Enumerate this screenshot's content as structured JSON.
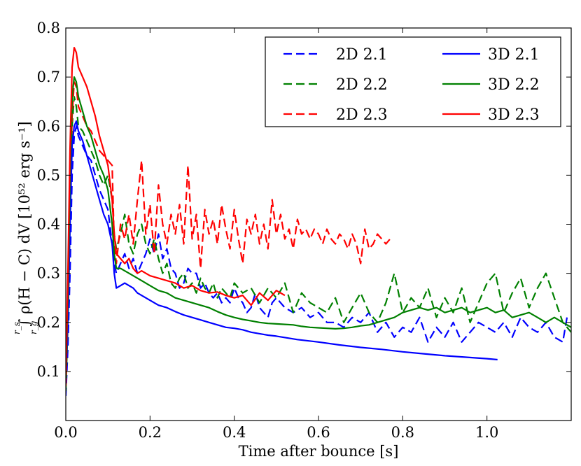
{
  "chart_data": {
    "type": "line",
    "title": "",
    "xlabel": "Time after bounce [s]",
    "ylabel": "∫ ρ(H − C) dV [10⁵² erg s⁻¹]",
    "ylabel_integral_lower": "r_g",
    "ylabel_integral_upper": "r_s",
    "xlim": [
      0.0,
      1.2
    ],
    "ylim": [
      0.0,
      0.8
    ],
    "xticks": [
      0.0,
      0.2,
      0.4,
      0.6,
      0.8,
      1.0
    ],
    "xtick_labels": [
      "0.0",
      "0.2",
      "0.4",
      "0.6",
      "0.8",
      "1.0"
    ],
    "yticks": [
      0.1,
      0.2,
      0.3,
      0.4,
      0.5,
      0.6,
      0.7,
      0.8
    ],
    "ytick_labels": [
      "0.1",
      "0.2",
      "0.3",
      "0.4",
      "0.5",
      "0.6",
      "0.7",
      "0.8"
    ],
    "legend_position": "top-right",
    "series": [
      {
        "name": "2D 2.1",
        "color": "#0000ff",
        "style": "dashed",
        "x": [
          0.0,
          0.005,
          0.01,
          0.015,
          0.02,
          0.025,
          0.03,
          0.04,
          0.05,
          0.06,
          0.07,
          0.08,
          0.09,
          0.1,
          0.11,
          0.115,
          0.12,
          0.13,
          0.14,
          0.15,
          0.16,
          0.17,
          0.18,
          0.19,
          0.2,
          0.21,
          0.22,
          0.23,
          0.24,
          0.25,
          0.26,
          0.27,
          0.28,
          0.29,
          0.3,
          0.31,
          0.32,
          0.33,
          0.34,
          0.35,
          0.36,
          0.37,
          0.38,
          0.39,
          0.4,
          0.41,
          0.42,
          0.43,
          0.44,
          0.45,
          0.46,
          0.47,
          0.48,
          0.49,
          0.5,
          0.52,
          0.54,
          0.56,
          0.58,
          0.6,
          0.62,
          0.64,
          0.66,
          0.68,
          0.7,
          0.72,
          0.74,
          0.76,
          0.78,
          0.8,
          0.82,
          0.84,
          0.86,
          0.88,
          0.9,
          0.92,
          0.94,
          0.96,
          0.98,
          1.0,
          1.02,
          1.04,
          1.06,
          1.08,
          1.1,
          1.12,
          1.14,
          1.16,
          1.18,
          1.19
        ],
        "y": [
          0.05,
          0.15,
          0.3,
          0.5,
          0.58,
          0.6,
          0.58,
          0.56,
          0.54,
          0.53,
          0.5,
          0.47,
          0.45,
          0.43,
          0.36,
          0.32,
          0.3,
          0.32,
          0.34,
          0.31,
          0.33,
          0.3,
          0.32,
          0.34,
          0.37,
          0.34,
          0.38,
          0.33,
          0.35,
          0.31,
          0.3,
          0.27,
          0.28,
          0.31,
          0.3,
          0.3,
          0.27,
          0.28,
          0.26,
          0.25,
          0.26,
          0.24,
          0.25,
          0.24,
          0.27,
          0.25,
          0.24,
          0.22,
          0.23,
          0.26,
          0.23,
          0.22,
          0.21,
          0.24,
          0.25,
          0.23,
          0.22,
          0.23,
          0.21,
          0.22,
          0.2,
          0.2,
          0.19,
          0.21,
          0.2,
          0.22,
          0.18,
          0.2,
          0.17,
          0.19,
          0.18,
          0.21,
          0.16,
          0.19,
          0.17,
          0.2,
          0.16,
          0.18,
          0.2,
          0.19,
          0.18,
          0.2,
          0.17,
          0.21,
          0.19,
          0.18,
          0.2,
          0.17,
          0.16,
          0.21
        ]
      },
      {
        "name": "2D 2.2",
        "color": "#008000",
        "style": "dashed",
        "x": [
          0.0,
          0.005,
          0.01,
          0.015,
          0.02,
          0.025,
          0.03,
          0.04,
          0.05,
          0.06,
          0.07,
          0.08,
          0.09,
          0.1,
          0.11,
          0.115,
          0.12,
          0.13,
          0.14,
          0.15,
          0.16,
          0.17,
          0.18,
          0.19,
          0.2,
          0.21,
          0.22,
          0.23,
          0.24,
          0.25,
          0.26,
          0.27,
          0.28,
          0.29,
          0.3,
          0.31,
          0.32,
          0.33,
          0.34,
          0.35,
          0.36,
          0.37,
          0.38,
          0.39,
          0.4,
          0.42,
          0.44,
          0.46,
          0.48,
          0.5,
          0.52,
          0.54,
          0.56,
          0.58,
          0.6,
          0.62,
          0.64,
          0.66,
          0.68,
          0.7,
          0.72,
          0.74,
          0.76,
          0.78,
          0.8,
          0.82,
          0.84,
          0.86,
          0.88,
          0.9,
          0.92,
          0.94,
          0.96,
          0.98,
          1.0,
          1.02,
          1.04,
          1.06,
          1.08,
          1.1,
          1.12,
          1.14,
          1.16,
          1.18,
          1.2
        ],
        "y": [
          0.06,
          0.2,
          0.4,
          0.6,
          0.66,
          0.64,
          0.6,
          0.59,
          0.57,
          0.55,
          0.53,
          0.5,
          0.48,
          0.5,
          0.45,
          0.38,
          0.35,
          0.38,
          0.42,
          0.36,
          0.34,
          0.38,
          0.4,
          0.36,
          0.34,
          0.37,
          0.33,
          0.3,
          0.32,
          0.28,
          0.27,
          0.29,
          0.3,
          0.27,
          0.28,
          0.26,
          0.29,
          0.27,
          0.26,
          0.28,
          0.25,
          0.27,
          0.26,
          0.25,
          0.28,
          0.26,
          0.27,
          0.24,
          0.27,
          0.25,
          0.28,
          0.22,
          0.26,
          0.24,
          0.23,
          0.22,
          0.25,
          0.2,
          0.23,
          0.26,
          0.22,
          0.2,
          0.24,
          0.3,
          0.22,
          0.25,
          0.23,
          0.27,
          0.21,
          0.25,
          0.22,
          0.27,
          0.2,
          0.24,
          0.28,
          0.3,
          0.22,
          0.26,
          0.29,
          0.23,
          0.27,
          0.3,
          0.25,
          0.2,
          0.18
        ]
      },
      {
        "name": "2D 2.3",
        "color": "#ff0000",
        "style": "dashed",
        "x": [
          0.0,
          0.005,
          0.01,
          0.015,
          0.02,
          0.025,
          0.03,
          0.04,
          0.05,
          0.06,
          0.07,
          0.08,
          0.09,
          0.1,
          0.11,
          0.115,
          0.12,
          0.13,
          0.14,
          0.15,
          0.16,
          0.17,
          0.18,
          0.19,
          0.2,
          0.21,
          0.22,
          0.23,
          0.24,
          0.25,
          0.26,
          0.27,
          0.28,
          0.29,
          0.3,
          0.31,
          0.32,
          0.33,
          0.34,
          0.35,
          0.36,
          0.37,
          0.38,
          0.39,
          0.4,
          0.41,
          0.42,
          0.43,
          0.44,
          0.45,
          0.46,
          0.47,
          0.48,
          0.49,
          0.5,
          0.51,
          0.52,
          0.53,
          0.54,
          0.55,
          0.56,
          0.57,
          0.58,
          0.59,
          0.6,
          0.61,
          0.62,
          0.63,
          0.64,
          0.65,
          0.66,
          0.67,
          0.68,
          0.69,
          0.7,
          0.71,
          0.72,
          0.73,
          0.74,
          0.75,
          0.76,
          0.77
        ],
        "y": [
          0.07,
          0.25,
          0.45,
          0.62,
          0.69,
          0.68,
          0.64,
          0.62,
          0.6,
          0.59,
          0.57,
          0.55,
          0.54,
          0.53,
          0.52,
          0.36,
          0.32,
          0.4,
          0.37,
          0.42,
          0.36,
          0.45,
          0.53,
          0.38,
          0.44,
          0.34,
          0.48,
          0.4,
          0.36,
          0.42,
          0.38,
          0.44,
          0.36,
          0.52,
          0.37,
          0.42,
          0.31,
          0.43,
          0.38,
          0.41,
          0.36,
          0.44,
          0.39,
          0.35,
          0.43,
          0.37,
          0.32,
          0.41,
          0.38,
          0.42,
          0.36,
          0.4,
          0.35,
          0.45,
          0.38,
          0.42,
          0.37,
          0.39,
          0.35,
          0.41,
          0.38,
          0.39,
          0.37,
          0.39,
          0.38,
          0.36,
          0.39,
          0.37,
          0.36,
          0.38,
          0.37,
          0.35,
          0.38,
          0.36,
          0.32,
          0.39,
          0.35,
          0.36,
          0.38,
          0.37,
          0.36,
          0.37
        ]
      },
      {
        "name": "3D 2.1",
        "color": "#0000ff",
        "style": "solid",
        "x": [
          0.0,
          0.005,
          0.01,
          0.015,
          0.02,
          0.025,
          0.03,
          0.04,
          0.05,
          0.06,
          0.07,
          0.08,
          0.09,
          0.1,
          0.11,
          0.115,
          0.12,
          0.13,
          0.14,
          0.15,
          0.16,
          0.17,
          0.18,
          0.2,
          0.22,
          0.24,
          0.26,
          0.28,
          0.3,
          0.32,
          0.34,
          0.36,
          0.38,
          0.4,
          0.42,
          0.44,
          0.46,
          0.48,
          0.5,
          0.55,
          0.6,
          0.65,
          0.7,
          0.75,
          0.8,
          0.85,
          0.9,
          0.95,
          1.0,
          1.025
        ],
        "y": [
          0.1,
          0.2,
          0.4,
          0.56,
          0.6,
          0.61,
          0.59,
          0.57,
          0.54,
          0.51,
          0.48,
          0.45,
          0.42,
          0.4,
          0.36,
          0.3,
          0.27,
          0.275,
          0.28,
          0.275,
          0.27,
          0.26,
          0.255,
          0.245,
          0.235,
          0.23,
          0.222,
          0.215,
          0.21,
          0.205,
          0.2,
          0.195,
          0.19,
          0.188,
          0.185,
          0.18,
          0.177,
          0.174,
          0.172,
          0.165,
          0.16,
          0.154,
          0.149,
          0.145,
          0.14,
          0.136,
          0.132,
          0.129,
          0.126,
          0.124
        ]
      },
      {
        "name": "3D 2.2",
        "color": "#008000",
        "style": "solid",
        "x": [
          0.0,
          0.005,
          0.01,
          0.015,
          0.02,
          0.025,
          0.03,
          0.04,
          0.05,
          0.06,
          0.07,
          0.08,
          0.09,
          0.1,
          0.11,
          0.115,
          0.12,
          0.13,
          0.14,
          0.15,
          0.16,
          0.18,
          0.2,
          0.22,
          0.24,
          0.26,
          0.28,
          0.3,
          0.32,
          0.34,
          0.36,
          0.38,
          0.4,
          0.42,
          0.44,
          0.46,
          0.48,
          0.5,
          0.52,
          0.54,
          0.56,
          0.58,
          0.6,
          0.62,
          0.64,
          0.66,
          0.68,
          0.7,
          0.72,
          0.74,
          0.76,
          0.78,
          0.8,
          0.82,
          0.84,
          0.86,
          0.88,
          0.9,
          0.92,
          0.94,
          0.96,
          0.98,
          1.0,
          1.02,
          1.04,
          1.06,
          1.08,
          1.1,
          1.12,
          1.14,
          1.16,
          1.18,
          1.2
        ],
        "y": [
          0.1,
          0.25,
          0.5,
          0.66,
          0.7,
          0.69,
          0.66,
          0.63,
          0.6,
          0.58,
          0.55,
          0.52,
          0.5,
          0.47,
          0.4,
          0.34,
          0.31,
          0.31,
          0.305,
          0.3,
          0.295,
          0.285,
          0.275,
          0.265,
          0.26,
          0.25,
          0.245,
          0.24,
          0.235,
          0.23,
          0.222,
          0.215,
          0.21,
          0.206,
          0.203,
          0.2,
          0.198,
          0.197,
          0.196,
          0.195,
          0.192,
          0.19,
          0.189,
          0.188,
          0.187,
          0.188,
          0.19,
          0.193,
          0.195,
          0.2,
          0.205,
          0.21,
          0.22,
          0.225,
          0.23,
          0.225,
          0.23,
          0.22,
          0.225,
          0.23,
          0.22,
          0.225,
          0.23,
          0.22,
          0.225,
          0.21,
          0.215,
          0.22,
          0.21,
          0.2,
          0.21,
          0.2,
          0.19
        ]
      },
      {
        "name": "3D 2.3",
        "color": "#ff0000",
        "style": "solid",
        "x": [
          0.0,
          0.005,
          0.01,
          0.015,
          0.02,
          0.025,
          0.03,
          0.04,
          0.05,
          0.06,
          0.07,
          0.08,
          0.09,
          0.1,
          0.11,
          0.115,
          0.12,
          0.13,
          0.14,
          0.15,
          0.16,
          0.17,
          0.18,
          0.19,
          0.2,
          0.22,
          0.24,
          0.26,
          0.28,
          0.3,
          0.32,
          0.34,
          0.36,
          0.38,
          0.4,
          0.42,
          0.44,
          0.46,
          0.48,
          0.5,
          0.52
        ],
        "y": [
          0.09,
          0.3,
          0.55,
          0.72,
          0.76,
          0.75,
          0.72,
          0.7,
          0.68,
          0.65,
          0.62,
          0.58,
          0.55,
          0.52,
          0.45,
          0.38,
          0.34,
          0.33,
          0.32,
          0.33,
          0.31,
          0.3,
          0.305,
          0.3,
          0.295,
          0.29,
          0.285,
          0.28,
          0.27,
          0.275,
          0.265,
          0.26,
          0.262,
          0.255,
          0.25,
          0.255,
          0.235,
          0.26,
          0.245,
          0.265,
          0.255
        ]
      }
    ]
  }
}
